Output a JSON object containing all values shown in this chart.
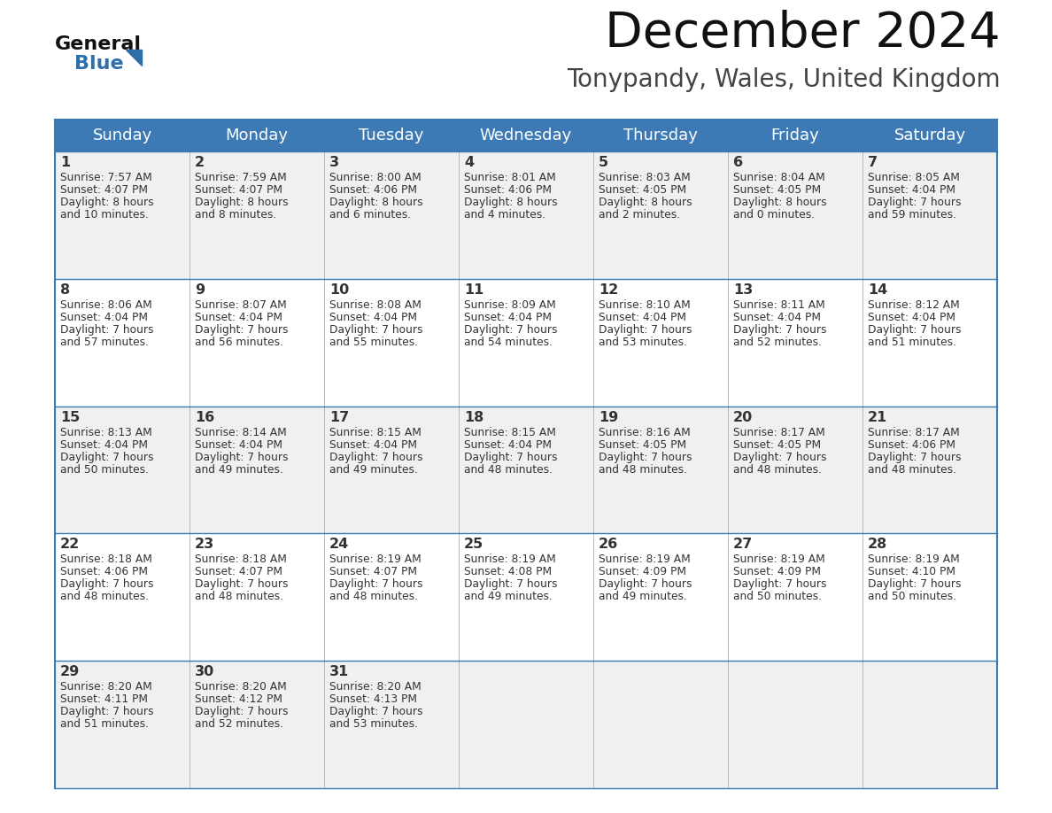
{
  "title": "December 2024",
  "subtitle": "Tonypandy, Wales, United Kingdom",
  "days_of_week": [
    "Sunday",
    "Monday",
    "Tuesday",
    "Wednesday",
    "Thursday",
    "Friday",
    "Saturday"
  ],
  "header_bg": "#3d7ab5",
  "header_text": "#ffffff",
  "row_bg_odd": "#f0f0f0",
  "row_bg_even": "#ffffff",
  "cell_text": "#333333",
  "border_color": "#3d7ab5",
  "title_color": "#111111",
  "subtitle_color": "#444444",
  "logo_general_color": "#111111",
  "logo_blue_color": "#2d6faa",
  "calendar_data": [
    {
      "day": 1,
      "col": 0,
      "row": 0,
      "sunrise": "7:57 AM",
      "sunset": "4:07 PM",
      "daylight_h": "8 hours",
      "daylight_m": "and 10 minutes."
    },
    {
      "day": 2,
      "col": 1,
      "row": 0,
      "sunrise": "7:59 AM",
      "sunset": "4:07 PM",
      "daylight_h": "8 hours",
      "daylight_m": "and 8 minutes."
    },
    {
      "day": 3,
      "col": 2,
      "row": 0,
      "sunrise": "8:00 AM",
      "sunset": "4:06 PM",
      "daylight_h": "8 hours",
      "daylight_m": "and 6 minutes."
    },
    {
      "day": 4,
      "col": 3,
      "row": 0,
      "sunrise": "8:01 AM",
      "sunset": "4:06 PM",
      "daylight_h": "8 hours",
      "daylight_m": "and 4 minutes."
    },
    {
      "day": 5,
      "col": 4,
      "row": 0,
      "sunrise": "8:03 AM",
      "sunset": "4:05 PM",
      "daylight_h": "8 hours",
      "daylight_m": "and 2 minutes."
    },
    {
      "day": 6,
      "col": 5,
      "row": 0,
      "sunrise": "8:04 AM",
      "sunset": "4:05 PM",
      "daylight_h": "8 hours",
      "daylight_m": "and 0 minutes."
    },
    {
      "day": 7,
      "col": 6,
      "row": 0,
      "sunrise": "8:05 AM",
      "sunset": "4:04 PM",
      "daylight_h": "7 hours",
      "daylight_m": "and 59 minutes."
    },
    {
      "day": 8,
      "col": 0,
      "row": 1,
      "sunrise": "8:06 AM",
      "sunset": "4:04 PM",
      "daylight_h": "7 hours",
      "daylight_m": "and 57 minutes."
    },
    {
      "day": 9,
      "col": 1,
      "row": 1,
      "sunrise": "8:07 AM",
      "sunset": "4:04 PM",
      "daylight_h": "7 hours",
      "daylight_m": "and 56 minutes."
    },
    {
      "day": 10,
      "col": 2,
      "row": 1,
      "sunrise": "8:08 AM",
      "sunset": "4:04 PM",
      "daylight_h": "7 hours",
      "daylight_m": "and 55 minutes."
    },
    {
      "day": 11,
      "col": 3,
      "row": 1,
      "sunrise": "8:09 AM",
      "sunset": "4:04 PM",
      "daylight_h": "7 hours",
      "daylight_m": "and 54 minutes."
    },
    {
      "day": 12,
      "col": 4,
      "row": 1,
      "sunrise": "8:10 AM",
      "sunset": "4:04 PM",
      "daylight_h": "7 hours",
      "daylight_m": "and 53 minutes."
    },
    {
      "day": 13,
      "col": 5,
      "row": 1,
      "sunrise": "8:11 AM",
      "sunset": "4:04 PM",
      "daylight_h": "7 hours",
      "daylight_m": "and 52 minutes."
    },
    {
      "day": 14,
      "col": 6,
      "row": 1,
      "sunrise": "8:12 AM",
      "sunset": "4:04 PM",
      "daylight_h": "7 hours",
      "daylight_m": "and 51 minutes."
    },
    {
      "day": 15,
      "col": 0,
      "row": 2,
      "sunrise": "8:13 AM",
      "sunset": "4:04 PM",
      "daylight_h": "7 hours",
      "daylight_m": "and 50 minutes."
    },
    {
      "day": 16,
      "col": 1,
      "row": 2,
      "sunrise": "8:14 AM",
      "sunset": "4:04 PM",
      "daylight_h": "7 hours",
      "daylight_m": "and 49 minutes."
    },
    {
      "day": 17,
      "col": 2,
      "row": 2,
      "sunrise": "8:15 AM",
      "sunset": "4:04 PM",
      "daylight_h": "7 hours",
      "daylight_m": "and 49 minutes."
    },
    {
      "day": 18,
      "col": 3,
      "row": 2,
      "sunrise": "8:15 AM",
      "sunset": "4:04 PM",
      "daylight_h": "7 hours",
      "daylight_m": "and 48 minutes."
    },
    {
      "day": 19,
      "col": 4,
      "row": 2,
      "sunrise": "8:16 AM",
      "sunset": "4:05 PM",
      "daylight_h": "7 hours",
      "daylight_m": "and 48 minutes."
    },
    {
      "day": 20,
      "col": 5,
      "row": 2,
      "sunrise": "8:17 AM",
      "sunset": "4:05 PM",
      "daylight_h": "7 hours",
      "daylight_m": "and 48 minutes."
    },
    {
      "day": 21,
      "col": 6,
      "row": 2,
      "sunrise": "8:17 AM",
      "sunset": "4:06 PM",
      "daylight_h": "7 hours",
      "daylight_m": "and 48 minutes."
    },
    {
      "day": 22,
      "col": 0,
      "row": 3,
      "sunrise": "8:18 AM",
      "sunset": "4:06 PM",
      "daylight_h": "7 hours",
      "daylight_m": "and 48 minutes."
    },
    {
      "day": 23,
      "col": 1,
      "row": 3,
      "sunrise": "8:18 AM",
      "sunset": "4:07 PM",
      "daylight_h": "7 hours",
      "daylight_m": "and 48 minutes."
    },
    {
      "day": 24,
      "col": 2,
      "row": 3,
      "sunrise": "8:19 AM",
      "sunset": "4:07 PM",
      "daylight_h": "7 hours",
      "daylight_m": "and 48 minutes."
    },
    {
      "day": 25,
      "col": 3,
      "row": 3,
      "sunrise": "8:19 AM",
      "sunset": "4:08 PM",
      "daylight_h": "7 hours",
      "daylight_m": "and 49 minutes."
    },
    {
      "day": 26,
      "col": 4,
      "row": 3,
      "sunrise": "8:19 AM",
      "sunset": "4:09 PM",
      "daylight_h": "7 hours",
      "daylight_m": "and 49 minutes."
    },
    {
      "day": 27,
      "col": 5,
      "row": 3,
      "sunrise": "8:19 AM",
      "sunset": "4:09 PM",
      "daylight_h": "7 hours",
      "daylight_m": "and 50 minutes."
    },
    {
      "day": 28,
      "col": 6,
      "row": 3,
      "sunrise": "8:19 AM",
      "sunset": "4:10 PM",
      "daylight_h": "7 hours",
      "daylight_m": "and 50 minutes."
    },
    {
      "day": 29,
      "col": 0,
      "row": 4,
      "sunrise": "8:20 AM",
      "sunset": "4:11 PM",
      "daylight_h": "7 hours",
      "daylight_m": "and 51 minutes."
    },
    {
      "day": 30,
      "col": 1,
      "row": 4,
      "sunrise": "8:20 AM",
      "sunset": "4:12 PM",
      "daylight_h": "7 hours",
      "daylight_m": "and 52 minutes."
    },
    {
      "day": 31,
      "col": 2,
      "row": 4,
      "sunrise": "8:20 AM",
      "sunset": "4:13 PM",
      "daylight_h": "7 hours",
      "daylight_m": "and 53 minutes."
    }
  ]
}
